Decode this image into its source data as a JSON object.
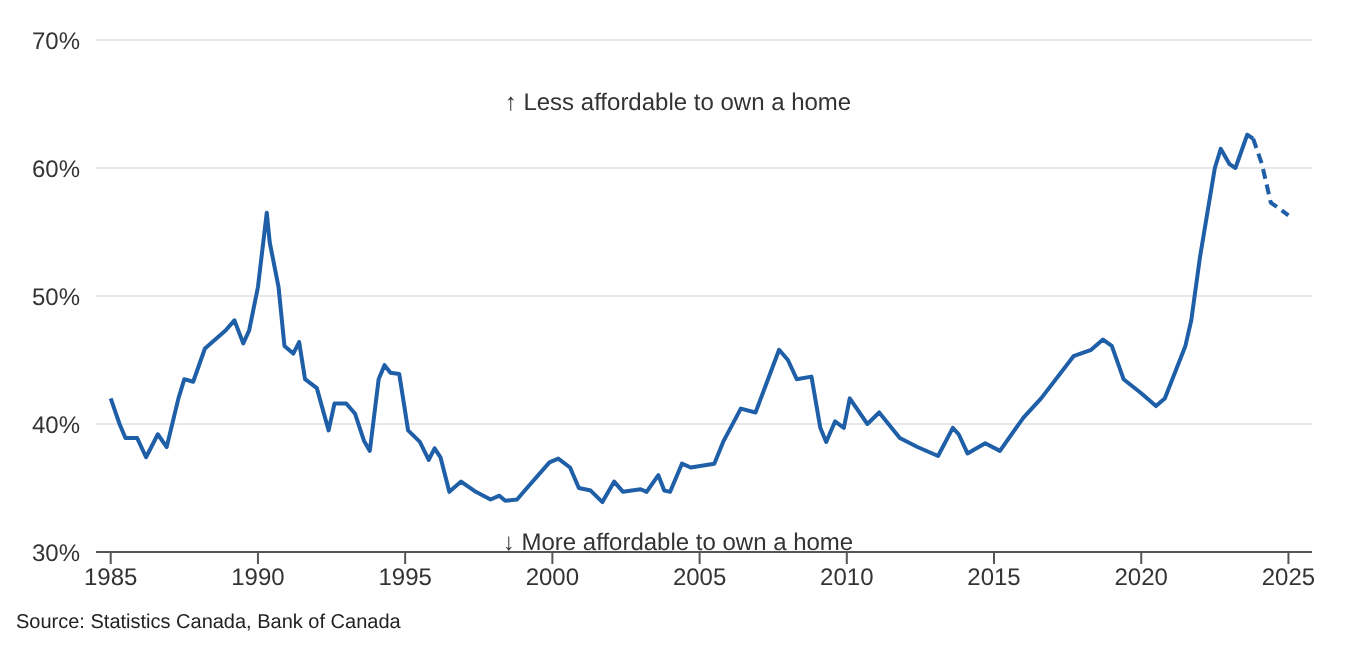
{
  "chart_data": {
    "type": "line",
    "x": [
      1985.0,
      1985.3,
      1985.5,
      1985.9,
      1986.2,
      1986.6,
      1986.9,
      1987.3,
      1987.5,
      1987.8,
      1988.2,
      1988.9,
      1989.2,
      1989.5,
      1989.7,
      1990.0,
      1990.3,
      1990.4,
      1990.7,
      1990.9,
      1991.2,
      1991.4,
      1991.6,
      1992.0,
      1992.4,
      1992.6,
      1993.0,
      1993.3,
      1993.6,
      1993.8,
      1994.1,
      1994.3,
      1994.5,
      1994.8,
      1995.1,
      1995.5,
      1995.8,
      1996.0,
      1996.2,
      1996.5,
      1996.9,
      1997.4,
      1997.9,
      1998.2,
      1998.4,
      1998.8,
      1999.1,
      1999.9,
      2000.2,
      2000.6,
      2000.9,
      2001.3,
      2001.7,
      2002.1,
      2002.4,
      2003.0,
      2003.2,
      2003.6,
      2003.8,
      2004.0,
      2004.4,
      2004.7,
      2005.5,
      2005.8,
      2006.4,
      2006.9,
      2007.7,
      2008.0,
      2008.3,
      2008.8,
      2009.1,
      2009.3,
      2009.6,
      2009.9,
      2010.1,
      2010.7,
      2011.1,
      2011.8,
      2012.4,
      2013.1,
      2013.6,
      2013.8,
      2014.1,
      2014.7,
      2015.2,
      2016.0,
      2016.6,
      2017.7,
      2018.3,
      2018.7,
      2019.0,
      2019.4,
      2020.0,
      2020.5,
      2020.8,
      2021.5,
      2021.7,
      2022.0,
      2022.5,
      2022.7,
      2023.0,
      2023.2,
      2023.6,
      2023.8
    ],
    "series": [
      {
        "color": "#1f5fa8",
        "line_style": "solid",
        "values": [
          42.0,
          40.0,
          38.9,
          38.9,
          37.4,
          39.2,
          38.2,
          42.0,
          43.5,
          43.3,
          45.9,
          47.3,
          48.1,
          46.3,
          47.3,
          50.7,
          56.5,
          54.2,
          50.7,
          46.1,
          45.5,
          46.4,
          43.5,
          42.8,
          39.5,
          41.6,
          41.6,
          40.8,
          38.7,
          37.9,
          43.5,
          44.6,
          44.0,
          43.9,
          39.5,
          38.6,
          37.2,
          38.1,
          37.4,
          34.7,
          35.5,
          34.7,
          34.1,
          34.4,
          34.0,
          34.1,
          34.9,
          37.0,
          37.3,
          36.6,
          35.0,
          34.8,
          33.9,
          35.5,
          34.7,
          34.9,
          34.7,
          36.0,
          34.8,
          34.7,
          36.9,
          36.6,
          36.9,
          38.6,
          41.2,
          40.9,
          45.8,
          45.0,
          43.5,
          43.7,
          39.7,
          38.6,
          40.2,
          39.7,
          42.0,
          40.0,
          40.9,
          38.9,
          38.2,
          37.5,
          39.7,
          39.2,
          37.7,
          38.5,
          37.9,
          40.5,
          42.0,
          45.3,
          45.8,
          46.6,
          46.1,
          43.5,
          42.4,
          41.4,
          42.0,
          46.1,
          48.1,
          53.1,
          60.0,
          61.5,
          60.3,
          60.0,
          62.6,
          62.3
        ]
      },
      {
        "color": "#1f5fa8",
        "line_style": "dashed",
        "x": [
          2023.8,
          2024.1,
          2024.4,
          2025.0
        ],
        "values": [
          62.3,
          60.3,
          57.3,
          56.3
        ]
      }
    ],
    "xlim": [
      1984.5,
      2025.8
    ],
    "xticks": [
      1985,
      1990,
      1995,
      2000,
      2005,
      2010,
      2015,
      2020,
      2025
    ],
    "ylim": [
      30,
      70
    ],
    "yticks": [
      {
        "value": 30,
        "label": "30%"
      },
      {
        "value": 40,
        "label": "40%"
      },
      {
        "value": 50,
        "label": "50%"
      },
      {
        "value": 60,
        "label": "60%"
      },
      {
        "value": 70,
        "label": "70%"
      }
    ],
    "grid": "y",
    "marker": "none",
    "annotations": [
      "↑ Less affordable to own a home",
      "↓ More affordable to own a home",
      "Source: Statistics Canada, Bank of Canada"
    ]
  }
}
